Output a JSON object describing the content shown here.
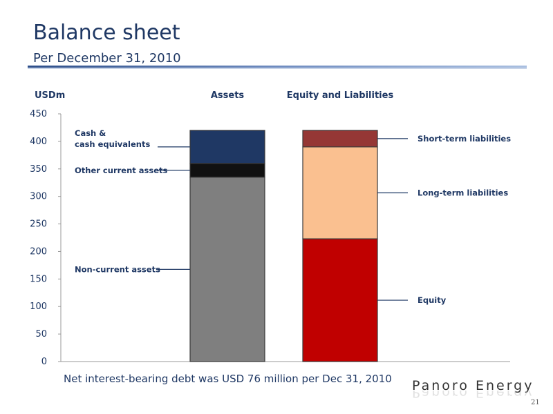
{
  "slide": {
    "title": "Balance sheet",
    "subtitle": "Per December 31, 2010",
    "footnote": "Net interest-bearing debt was USD 76 million per Dec 31, 2010",
    "logo": "Panoro Energy",
    "page_number": "21"
  },
  "chart_data": {
    "type": "bar",
    "stacked": true,
    "ylabel": "USDm",
    "ylim": [
      0,
      450
    ],
    "yticks": [
      0,
      50,
      100,
      150,
      200,
      250,
      300,
      350,
      400,
      450
    ],
    "grid": false,
    "legend": "none",
    "categories": [
      "Assets",
      "Equity and Liabilities"
    ],
    "series": [
      {
        "name": "Non-current assets",
        "category": "Assets",
        "value": 335,
        "color": "#7f7f7f"
      },
      {
        "name": "Other current assets",
        "category": "Assets",
        "value": 25,
        "color": "#111111"
      },
      {
        "name": "Cash & cash equivalents",
        "category": "Assets",
        "value": 60,
        "color": "#1f3864"
      },
      {
        "name": "Equity",
        "category": "Equity and Liabilities",
        "value": 223,
        "color": "#c00000"
      },
      {
        "name": "Long-term liabilities",
        "category": "Equity and Liabilities",
        "value": 167,
        "color": "#fac090"
      },
      {
        "name": "Short-term liabilities",
        "category": "Equity and Liabilities",
        "value": 30,
        "color": "#953735"
      }
    ],
    "annotations": [
      {
        "series": "Cash & cash equivalents",
        "lines": [
          "Cash &",
          "cash equivalents"
        ],
        "side": "left"
      },
      {
        "series": "Other current assets",
        "lines": [
          "Other current assets"
        ],
        "side": "left"
      },
      {
        "series": "Non-current assets",
        "lines": [
          "Non-current assets"
        ],
        "side": "left"
      },
      {
        "series": "Short-term liabilities",
        "lines": [
          "Short-term liabilities"
        ],
        "side": "right"
      },
      {
        "series": "Long-term liabilities",
        "lines": [
          "Long-term liabilities"
        ],
        "side": "right"
      },
      {
        "series": "Equity",
        "lines": [
          "Equity"
        ],
        "side": "right"
      }
    ]
  }
}
